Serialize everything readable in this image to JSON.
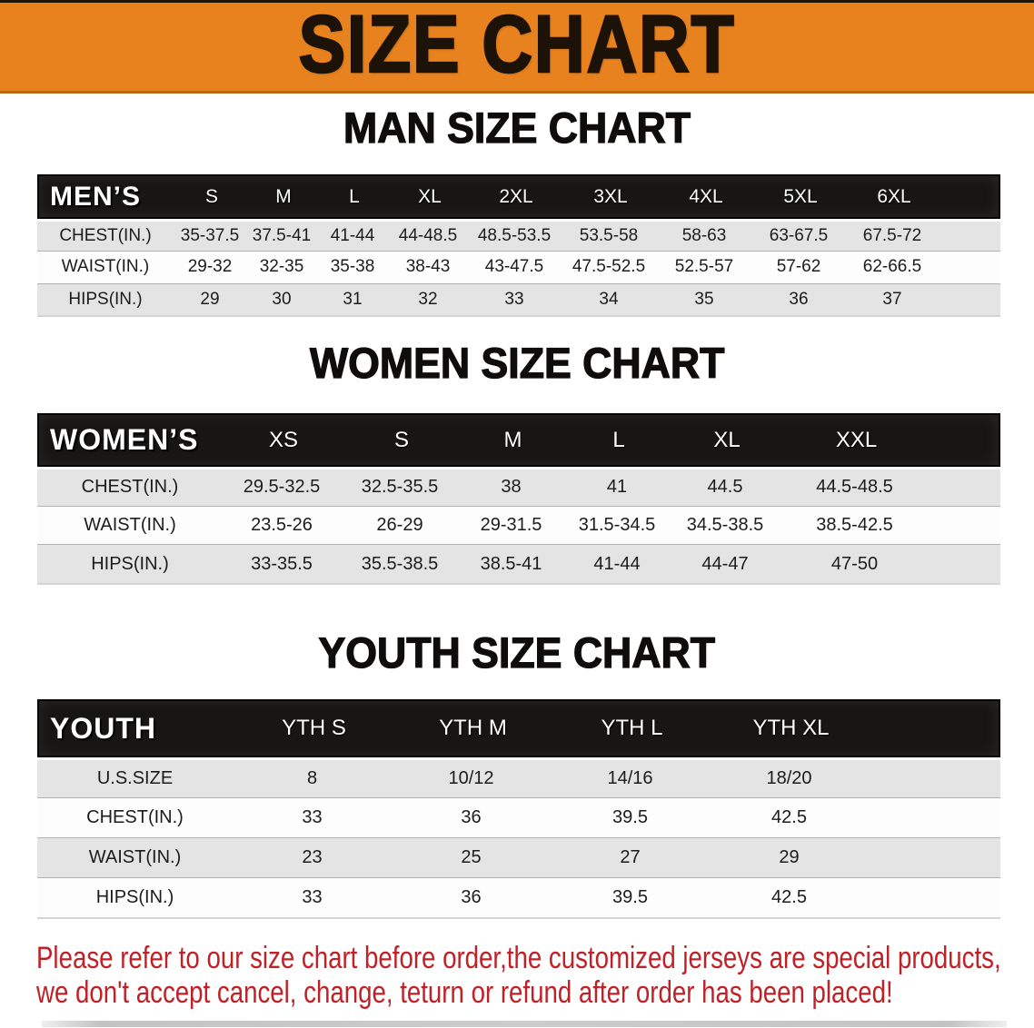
{
  "banner": {
    "title": "SIZE CHART",
    "background_color": "#e8821e",
    "text_color": "#1d1207"
  },
  "chart_data": [
    {
      "type": "table",
      "title": "MAN SIZE CHART",
      "header_label": "MEN’S",
      "columns": [
        "S",
        "M",
        "L",
        "XL",
        "2XL",
        "3XL",
        "4XL",
        "5XL",
        "6XL"
      ],
      "rows": [
        {
          "label": "CHEST(IN.)",
          "values": [
            "35-37.5",
            "37.5-41",
            "41-44",
            "44-48.5",
            "48.5-53.5",
            "53.5-58",
            "58-63",
            "63-67.5",
            "67.5-72"
          ]
        },
        {
          "label": "WAIST(IN.)",
          "values": [
            "29-32",
            "32-35",
            "35-38",
            "38-43",
            "43-47.5",
            "47.5-52.5",
            "52.5-57",
            "57-62",
            "62-66.5"
          ]
        },
        {
          "label": "HIPS(IN.)",
          "values": [
            "29",
            "30",
            "31",
            "32",
            "33",
            "34",
            "35",
            "36",
            "37"
          ]
        }
      ]
    },
    {
      "type": "table",
      "title": "WOMEN SIZE CHART",
      "header_label": "WOMEN’S",
      "columns": [
        "XS",
        "S",
        "M",
        "L",
        "XL",
        "XXL"
      ],
      "rows": [
        {
          "label": "CHEST(IN.)",
          "values": [
            "29.5-32.5",
            "32.5-35.5",
            "38",
            "41",
            "44.5",
            "44.5-48.5"
          ]
        },
        {
          "label": "WAIST(IN.)",
          "values": [
            "23.5-26",
            "26-29",
            "29-31.5",
            "31.5-34.5",
            "34.5-38.5",
            "38.5-42.5"
          ]
        },
        {
          "label": "HIPS(IN.)",
          "values": [
            "33-35.5",
            "35.5-38.5",
            "38.5-41",
            "41-44",
            "44-47",
            "47-50"
          ]
        }
      ]
    },
    {
      "type": "table",
      "title": "YOUTH SIZE CHART",
      "header_label": "YOUTH",
      "columns": [
        "YTH S",
        "YTH M",
        "YTH L",
        "YTH XL"
      ],
      "rows": [
        {
          "label": "U.S.SIZE",
          "values": [
            "8",
            "10/12",
            "14/16",
            "18/20"
          ]
        },
        {
          "label": "CHEST(IN.)",
          "values": [
            "33",
            "36",
            "39.5",
            "42.5"
          ]
        },
        {
          "label": "WAIST(IN.)",
          "values": [
            "23",
            "25",
            "27",
            "29"
          ]
        },
        {
          "label": "HIPS(IN.)",
          "values": [
            "33",
            "36",
            "39.5",
            "42.5"
          ]
        }
      ]
    }
  ],
  "footer_note": {
    "lines": [
      "Please refer to our size chart before order,the customized jerseys are special products,",
      "we don't accept cancel, change, teturn or refund after order has been placed!"
    ],
    "text_color": "#c02127"
  },
  "colors": {
    "table_header_bg": "#171615",
    "table_header_text": "#ffffff",
    "row_shade_bg": "#e4e4e4",
    "row_plain_bg": "#fdfdfd",
    "heading_text": "#0e0d0c"
  }
}
